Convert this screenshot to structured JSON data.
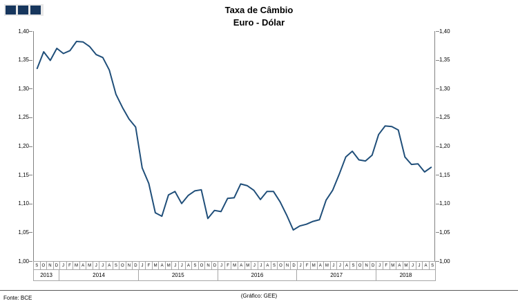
{
  "logo": {
    "square_count": 3,
    "color": "#17365d"
  },
  "title": {
    "line1": "Taxa de Câmbio",
    "line2": "Euro - Dólar"
  },
  "footer": {
    "source": "Fonte: BCE",
    "credit": "(Gráfico: GEE)"
  },
  "chart_data": {
    "type": "line",
    "title": "Taxa de Câmbio Euro - Dólar",
    "ylabel": "",
    "xlabel": "",
    "ylim": [
      1.0,
      1.4
    ],
    "ytick_step": 0.05,
    "ytick_labels": [
      "1,40",
      "1,35",
      "1,30",
      "1,25",
      "1,20",
      "1,15",
      "1,10",
      "1,05",
      "1,00"
    ],
    "line_color": "#1f4e79",
    "grid": false,
    "legend": "none",
    "x_months": [
      "S",
      "O",
      "N",
      "D",
      "J",
      "F",
      "M",
      "A",
      "M",
      "J",
      "J",
      "A",
      "S",
      "O",
      "N",
      "D",
      "J",
      "F",
      "M",
      "A",
      "M",
      "J",
      "J",
      "A",
      "S",
      "O",
      "N",
      "D",
      "J",
      "F",
      "M",
      "A",
      "M",
      "J",
      "J",
      "A",
      "S",
      "O",
      "N",
      "D",
      "J",
      "F",
      "M",
      "A",
      "M",
      "J",
      "J",
      "A",
      "S",
      "O",
      "N",
      "D",
      "J",
      "F",
      "M",
      "A",
      "M",
      "J",
      "J",
      "A",
      "S"
    ],
    "years": [
      {
        "label": "2013",
        "months": 4
      },
      {
        "label": "2014",
        "months": 12
      },
      {
        "label": "2015",
        "months": 12
      },
      {
        "label": "2016",
        "months": 12
      },
      {
        "label": "2017",
        "months": 12
      },
      {
        "label": "2018",
        "months": 9
      }
    ],
    "series": [
      {
        "name": "EUR/USD",
        "values": [
          1.335,
          1.364,
          1.349,
          1.37,
          1.361,
          1.366,
          1.382,
          1.381,
          1.373,
          1.359,
          1.354,
          1.332,
          1.29,
          1.267,
          1.247,
          1.233,
          1.162,
          1.135,
          1.084,
          1.078,
          1.115,
          1.121,
          1.1,
          1.114,
          1.122,
          1.124,
          1.074,
          1.088,
          1.086,
          1.109,
          1.11,
          1.134,
          1.131,
          1.123,
          1.107,
          1.121,
          1.121,
          1.103,
          1.08,
          1.054,
          1.061,
          1.064,
          1.069,
          1.072,
          1.106,
          1.123,
          1.151,
          1.181,
          1.191,
          1.176,
          1.174,
          1.184,
          1.22,
          1.235,
          1.234,
          1.228,
          1.181,
          1.168,
          1.169,
          1.155,
          1.163
        ]
      }
    ]
  }
}
